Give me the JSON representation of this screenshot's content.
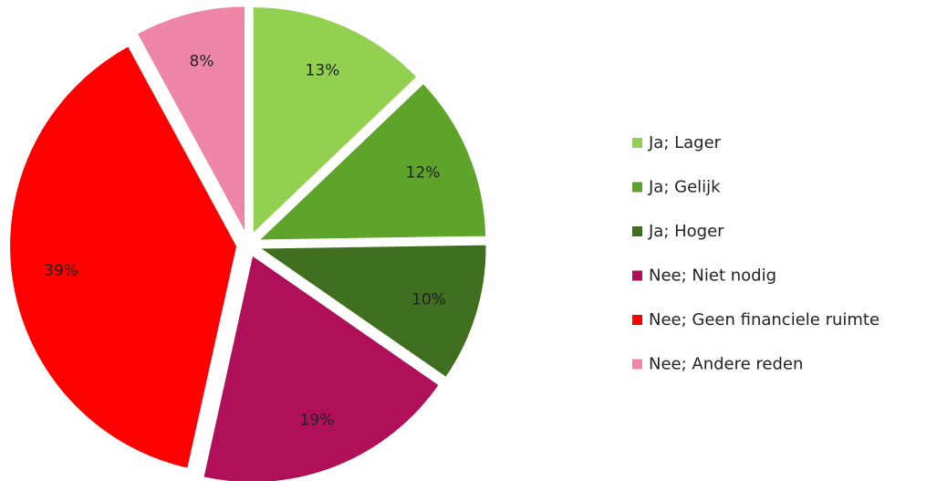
{
  "chart_data": {
    "type": "pie",
    "categories": [
      "Ja; Lager",
      "Ja; Gelijk",
      "Ja; Hoger",
      "Nee; Niet nodig",
      "Nee; Geen financiele ruimte",
      "Nee; Andere reden"
    ],
    "values": [
      13,
      12,
      10,
      19,
      39,
      8
    ],
    "value_labels": [
      "13%",
      "12%",
      "10%",
      "19%",
      "39%",
      "8%"
    ],
    "colors": [
      "#92d050",
      "#5ea32a",
      "#3f6e1f",
      "#b0105a",
      "#ff0000",
      "#ee87a7"
    ],
    "legend": "right"
  }
}
